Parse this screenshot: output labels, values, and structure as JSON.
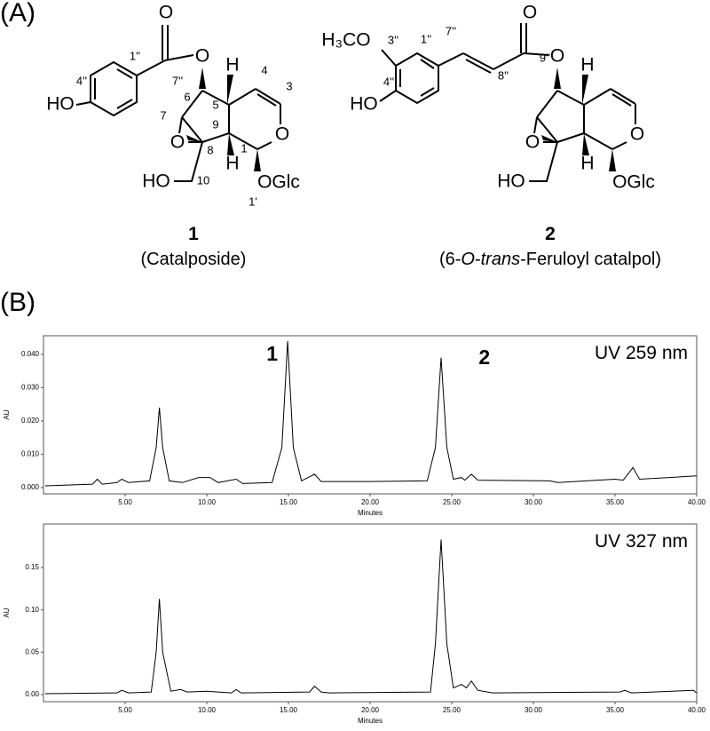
{
  "panel_a": {
    "label": "(A)",
    "compound_1": {
      "atoms": [
        "O",
        "O",
        "HO",
        "H",
        "H",
        "O",
        "O",
        "HO",
        "OGlc"
      ],
      "locants": [
        "1''",
        "7''",
        "4''",
        "6",
        "7",
        "5",
        "4",
        "3",
        "9",
        "8",
        "1",
        "10",
        "1'"
      ],
      "number": "1",
      "name": "(Catalposide)"
    },
    "compound_2": {
      "atoms": [
        "O",
        "O",
        "H₃CO",
        "HO",
        "H",
        "H",
        "O",
        "O",
        "HO",
        "OGlc"
      ],
      "locants": [
        "7''",
        "1''",
        "3''",
        "4''",
        "8''",
        "9''"
      ],
      "number": "2",
      "name_parts": [
        "(6-",
        "O",
        "-",
        "trans",
        "-Feruloyl catalpol)"
      ]
    }
  },
  "panel_b": {
    "label": "(B)"
  },
  "chart_data": [
    {
      "type": "line",
      "xlabel": "Minutes",
      "ylabel": "AU",
      "annotations": [
        "1",
        "2"
      ],
      "xlim": [
        0,
        40
      ],
      "ylim": [
        -0.0019,
        0.0456
      ],
      "xticks": [
        {
          "value": 5,
          "label": "5.00"
        },
        {
          "value": 10,
          "label": "10.00"
        },
        {
          "value": 15,
          "label": "15.00"
        },
        {
          "value": 20,
          "label": "20.00"
        },
        {
          "value": 25,
          "label": "25.00"
        },
        {
          "value": 30,
          "label": "30.00"
        },
        {
          "value": 35,
          "label": "35.00"
        },
        {
          "value": 40,
          "label": "40.00"
        }
      ],
      "yticks": [
        {
          "value": 0,
          "label": "0.000"
        },
        {
          "value": 0.01,
          "label": "0.010"
        },
        {
          "value": 0.02,
          "label": "0.020"
        },
        {
          "value": 0.03,
          "label": "0.030"
        },
        {
          "value": 0.04,
          "label": "0.040"
        }
      ],
      "x": [
        0.1,
        3.0,
        3.3,
        3.6,
        4.5,
        4.8,
        5.2,
        6.5,
        6.9,
        7.1,
        7.3,
        7.7,
        8.5,
        9.5,
        10.2,
        10.7,
        11.8,
        12.2,
        14.0,
        14.6,
        14.95,
        15.3,
        15.8,
        16.6,
        17.0,
        20.0,
        23.5,
        24.0,
        24.35,
        24.7,
        25.1,
        25.6,
        25.8,
        26.2,
        26.6,
        31.0,
        31.5,
        35.0,
        35.5,
        36.1,
        36.5,
        40.0
      ],
      "series": [
        {
          "name": "UV 259 nm",
          "color": "#000000",
          "values": [
            0.0005,
            0.001,
            0.0025,
            0.001,
            0.0015,
            0.0025,
            0.0015,
            0.002,
            0.012,
            0.024,
            0.012,
            0.002,
            0.0015,
            0.003,
            0.003,
            0.0015,
            0.0025,
            0.0012,
            0.0015,
            0.012,
            0.044,
            0.012,
            0.002,
            0.004,
            0.0018,
            0.0018,
            0.002,
            0.012,
            0.039,
            0.012,
            0.0025,
            0.003,
            0.0022,
            0.004,
            0.0022,
            0.002,
            0.0015,
            0.0025,
            0.0022,
            0.006,
            0.0025,
            0.0035
          ]
        }
      ]
    },
    {
      "type": "line",
      "xlabel": "Minutes",
      "ylabel": "AU",
      "xlim": [
        0,
        40
      ],
      "ylim": [
        -0.0084,
        0.2014
      ],
      "xticks": [
        {
          "value": 5,
          "label": "5.00"
        },
        {
          "value": 10,
          "label": "10.00"
        },
        {
          "value": 15,
          "label": "15.00"
        },
        {
          "value": 20,
          "label": "20.00"
        },
        {
          "value": 25,
          "label": "25.00"
        },
        {
          "value": 30,
          "label": "30.00"
        },
        {
          "value": 35,
          "label": "35.00"
        },
        {
          "value": 40,
          "label": "40.00"
        }
      ],
      "yticks": [
        {
          "value": 0,
          "label": "0.00"
        },
        {
          "value": 0.05,
          "label": "0.05"
        },
        {
          "value": 0.1,
          "label": "0.10"
        },
        {
          "value": 0.15,
          "label": "0.15"
        }
      ],
      "x": [
        0.1,
        4.5,
        4.8,
        5.2,
        6.6,
        6.9,
        7.1,
        7.3,
        7.8,
        8.4,
        8.8,
        10.0,
        11.5,
        11.8,
        12.1,
        16.3,
        16.6,
        17.0,
        17.5,
        23.7,
        24.0,
        24.35,
        24.7,
        25.1,
        25.6,
        25.9,
        26.2,
        26.6,
        27.5,
        35.3,
        35.6,
        36.0,
        39.8,
        40.0
      ],
      "series": [
        {
          "name": "UV 327 nm",
          "color": "#000000",
          "values": [
            0.001,
            0.002,
            0.005,
            0.002,
            0.003,
            0.05,
            0.113,
            0.05,
            0.004,
            0.006,
            0.003,
            0.004,
            0.002,
            0.006,
            0.002,
            0.003,
            0.01,
            0.003,
            0.002,
            0.003,
            0.06,
            0.183,
            0.06,
            0.008,
            0.012,
            0.008,
            0.016,
            0.005,
            0.002,
            0.003,
            0.005,
            0.002,
            0.005,
            0.002
          ]
        }
      ]
    }
  ]
}
